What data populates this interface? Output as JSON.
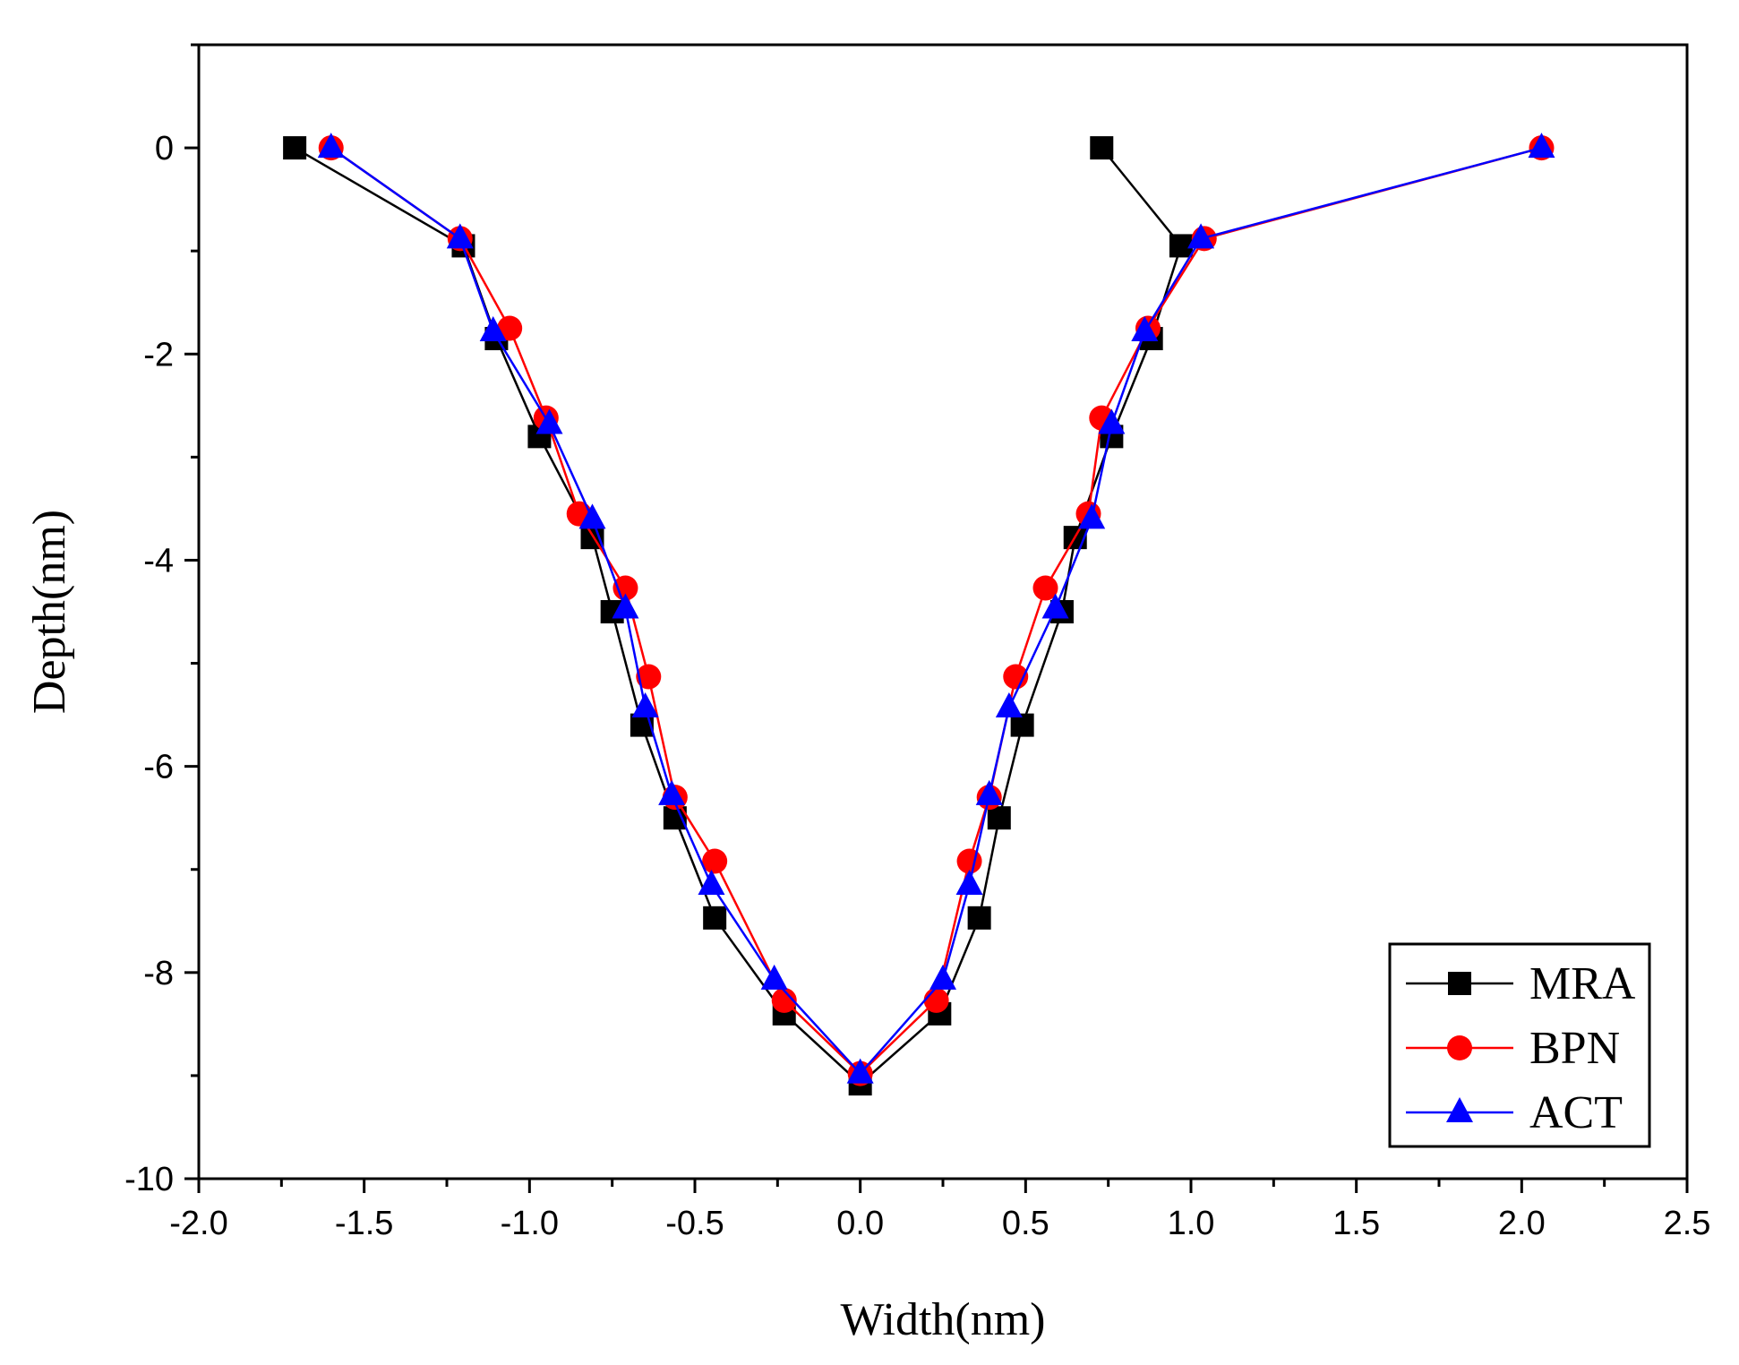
{
  "chart_data": {
    "type": "line",
    "title": "",
    "xlabel": "Width(nm)",
    "ylabel": "Depth(nm)",
    "xlim": [
      -2.0,
      2.5
    ],
    "ylim": [
      -10,
      1
    ],
    "x_ticks": [
      "-2.0",
      "-1.5",
      "-1.0",
      "-0.5",
      "0.0",
      "0.5",
      "1.0",
      "1.5",
      "2.0",
      "2.5"
    ],
    "y_ticks": [
      "0",
      "-2",
      "-4",
      "-6",
      "-8",
      "-10"
    ],
    "legend_position": "bottom-right",
    "series": [
      {
        "name": "MRA",
        "color": "#000000",
        "marker": "square",
        "points": [
          [
            -1.71,
            0
          ],
          [
            -1.2,
            -0.95
          ],
          [
            -1.1,
            -1.85
          ],
          [
            -0.97,
            -2.8
          ],
          [
            -0.81,
            -3.78
          ],
          [
            -0.75,
            -4.5
          ],
          [
            -0.66,
            -5.6
          ],
          [
            -0.56,
            -6.5
          ],
          [
            -0.44,
            -7.47
          ],
          [
            -0.23,
            -8.4
          ],
          [
            0.0,
            -9.08
          ],
          [
            0.24,
            -8.4
          ],
          [
            0.36,
            -7.47
          ],
          [
            0.42,
            -6.5
          ],
          [
            0.49,
            -5.6
          ],
          [
            0.61,
            -4.5
          ],
          [
            0.65,
            -3.78
          ],
          [
            0.76,
            -2.8
          ],
          [
            0.88,
            -1.85
          ],
          [
            0.97,
            -0.95
          ],
          [
            0.73,
            0
          ]
        ]
      },
      {
        "name": "BPN",
        "color": "#ff0000",
        "marker": "circle",
        "points": [
          [
            -1.6,
            0
          ],
          [
            -1.21,
            -0.88
          ],
          [
            -1.06,
            -1.75
          ],
          [
            -0.95,
            -2.62
          ],
          [
            -0.85,
            -3.55
          ],
          [
            -0.71,
            -4.27
          ],
          [
            -0.64,
            -5.13
          ],
          [
            -0.56,
            -6.3
          ],
          [
            -0.44,
            -6.92
          ],
          [
            -0.23,
            -8.27
          ],
          [
            0.0,
            -8.98
          ],
          [
            0.23,
            -8.27
          ],
          [
            0.33,
            -6.92
          ],
          [
            0.39,
            -6.3
          ],
          [
            0.47,
            -5.13
          ],
          [
            0.56,
            -4.27
          ],
          [
            0.69,
            -3.55
          ],
          [
            0.73,
            -2.62
          ],
          [
            0.87,
            -1.75
          ],
          [
            1.04,
            -0.88
          ],
          [
            2.06,
            0
          ]
        ]
      },
      {
        "name": "ACT",
        "color": "#0000ff",
        "marker": "triangle",
        "points": [
          [
            -1.6,
            0
          ],
          [
            -1.21,
            -0.88
          ],
          [
            -1.11,
            -1.78
          ],
          [
            -0.94,
            -2.68
          ],
          [
            -0.81,
            -3.6
          ],
          [
            -0.71,
            -4.47
          ],
          [
            -0.65,
            -5.43
          ],
          [
            -0.57,
            -6.28
          ],
          [
            -0.45,
            -7.15
          ],
          [
            -0.26,
            -8.07
          ],
          [
            0.0,
            -8.98
          ],
          [
            0.25,
            -8.07
          ],
          [
            0.33,
            -7.15
          ],
          [
            0.39,
            -6.28
          ],
          [
            0.45,
            -5.43
          ],
          [
            0.59,
            -4.47
          ],
          [
            0.7,
            -3.6
          ],
          [
            0.76,
            -2.68
          ],
          [
            0.86,
            -1.78
          ],
          [
            1.03,
            -0.88
          ],
          [
            2.06,
            0
          ]
        ]
      }
    ]
  }
}
